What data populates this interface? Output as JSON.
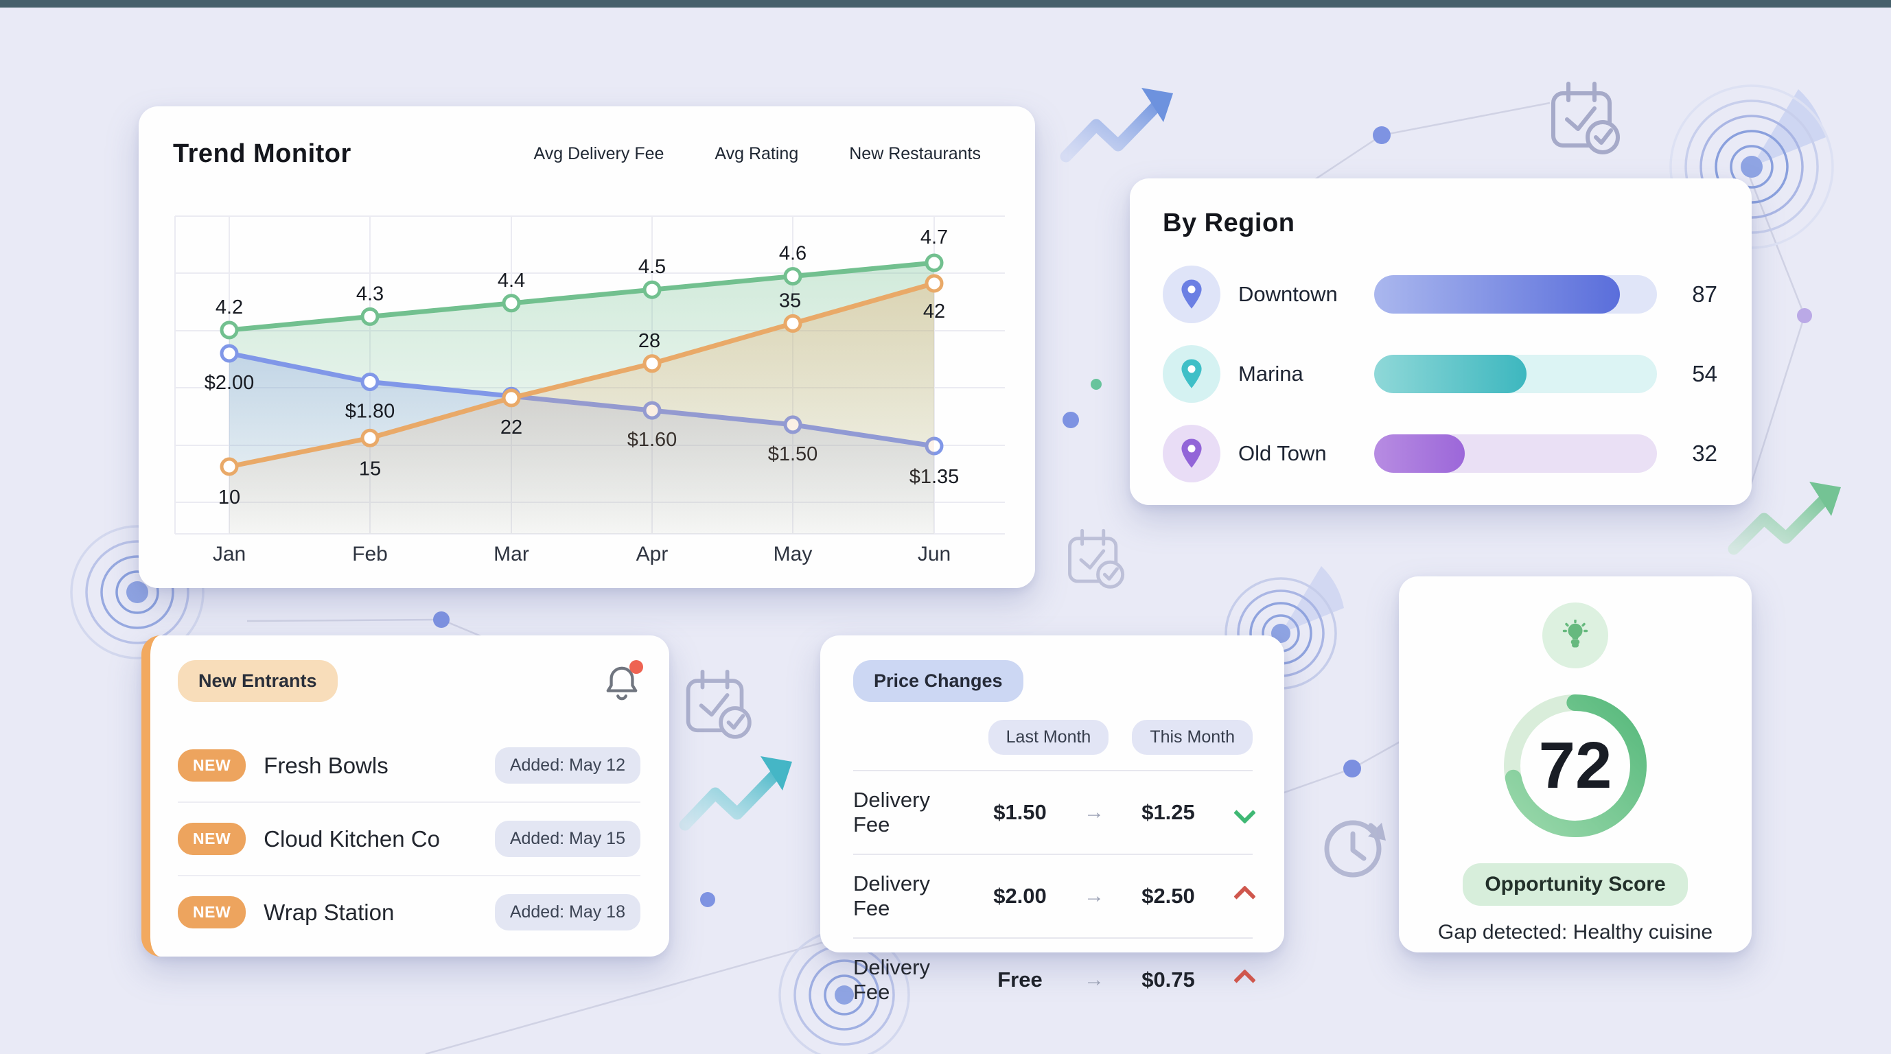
{
  "window": {
    "top_bar_color": "#46606b",
    "background": "#e9eaf6"
  },
  "trend_monitor": {
    "title": "Trend Monitor",
    "legend": [
      {
        "label": "Avg Delivery Fee",
        "bg": "#c7d4f1"
      },
      {
        "label": "Avg Rating",
        "bg": "#bfe4cc"
      },
      {
        "label": "New Restaurants",
        "bg": "#f6d8b4"
      }
    ]
  },
  "chart_data": {
    "type": "line",
    "title": "Trend Monitor",
    "x": [
      "Jan",
      "Feb",
      "Mar",
      "Apr",
      "May",
      "Jun"
    ],
    "grid": true,
    "legend_position": "top-right",
    "series": [
      {
        "name": "Avg Rating",
        "values": [
          4.2,
          4.3,
          4.4,
          4.5,
          4.6,
          4.7
        ],
        "labels": [
          "4.2",
          "4.3",
          "4.4",
          "4.5",
          "4.6",
          "4.7"
        ],
        "color": "#72c08f"
      },
      {
        "name": "Avg Delivery Fee",
        "values": [
          2.0,
          1.8,
          1.7,
          1.6,
          1.5,
          1.35
        ],
        "labels": [
          "$2.00",
          "$1.80",
          "",
          "$1.60",
          "$1.50",
          "$1.35"
        ],
        "color": "#8097e8"
      },
      {
        "name": "New Restaurants",
        "values": [
          10,
          15,
          22,
          28,
          35,
          42
        ],
        "labels": [
          "10",
          "15",
          "22",
          "28",
          "35",
          "42"
        ],
        "color": "#e9a968"
      }
    ]
  },
  "by_region": {
    "title": "By Region",
    "rows": [
      {
        "name": "Downtown",
        "value": 87,
        "pin_color": "#6b7fe3",
        "icon_bg": "#dfe4f8",
        "bar_from": "#aab7ee",
        "bar_to": "#5a6edb",
        "track": "#e0e5f8"
      },
      {
        "name": "Marina",
        "value": 54,
        "pin_color": "#3fbfc7",
        "icon_bg": "#d5f2f2",
        "bar_from": "#8fd8d8",
        "bar_to": "#3db7bf",
        "track": "#dcf4f4"
      },
      {
        "name": "Old Town",
        "value": 32,
        "pin_color": "#9265d8",
        "icon_bg": "#e9ddf6",
        "bar_from": "#b78ce2",
        "bar_to": "#9c67d9",
        "track": "#eae0f5"
      }
    ]
  },
  "new_entrants": {
    "chip": "New Entrants",
    "has_notification": true,
    "items": [
      {
        "badge": "NEW",
        "name": "Fresh Bowls",
        "added": "Added: May 12"
      },
      {
        "badge": "NEW",
        "name": "Cloud Kitchen Co",
        "added": "Added: May 15"
      },
      {
        "badge": "NEW",
        "name": "Wrap Station",
        "added": "Added: May 18"
      }
    ]
  },
  "price_changes": {
    "chip": "Price Changes",
    "columns": [
      "Last Month",
      "This Month"
    ],
    "arrow": "→",
    "rows": [
      {
        "item": "Delivery Fee",
        "last": "$1.50",
        "current": "$1.25",
        "trend": "down"
      },
      {
        "item": "Delivery Fee",
        "last": "$2.00",
        "current": "$2.50",
        "trend": "up"
      },
      {
        "item": "Delivery Fee",
        "last": "Free",
        "current": "$0.75",
        "trend": "up"
      }
    ],
    "trend_colors": {
      "down": "#3fb874",
      "up": "#cf574d"
    }
  },
  "opportunity": {
    "score": "72",
    "score_percent": 72,
    "badge": "Opportunity Score",
    "caption": "Gap detected: Healthy cuisine",
    "ring_from": "#9ad8ab",
    "ring_to": "#57b97c",
    "track": "#d9edda"
  }
}
